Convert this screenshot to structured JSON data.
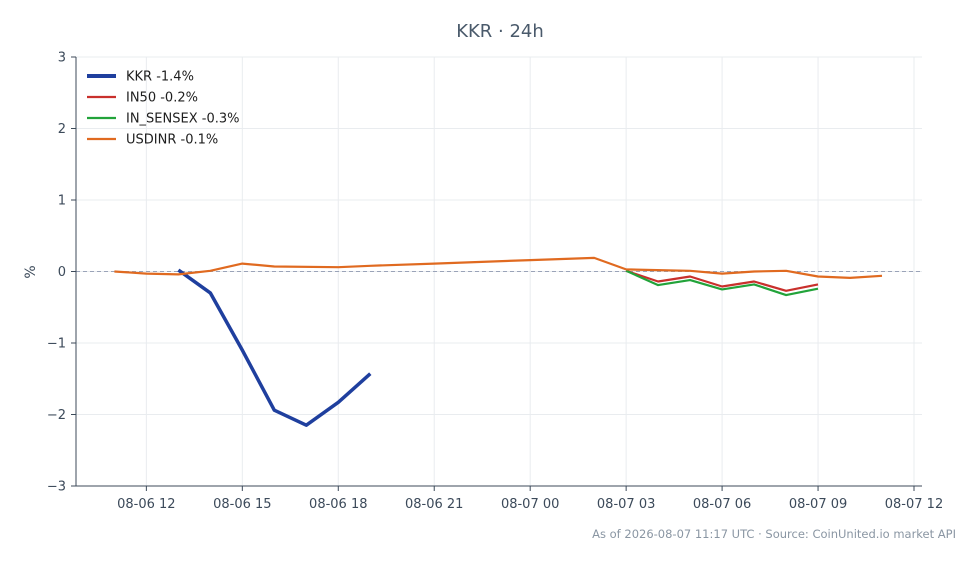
{
  "chart_data": {
    "type": "line",
    "title": "KKR · 24h",
    "xlabel": "",
    "ylabel": "%",
    "xlim": [
      "2026-08-06 09:48",
      "2026-08-07 12:15"
    ],
    "ylim": [
      -3,
      3
    ],
    "x_tick_labels": [
      "08-06 12",
      "08-06 15",
      "08-06 18",
      "08-06 21",
      "08-07 00",
      "08-07 03",
      "08-07 06",
      "08-07 09",
      "08-07 12"
    ],
    "x_ticks": [
      "2026-08-06 12:00",
      "2026-08-06 15:00",
      "2026-08-06 18:00",
      "2026-08-06 21:00",
      "2026-08-07 00:00",
      "2026-08-07 03:00",
      "2026-08-07 06:00",
      "2026-08-07 09:00",
      "2026-08-07 12:00"
    ],
    "y_ticks": [
      -3,
      -2,
      -1,
      0,
      1,
      2,
      3
    ],
    "y_tick_labels": [
      "−3",
      "−2",
      "−1",
      "0",
      "1",
      "2",
      "3"
    ],
    "grid": true,
    "zero_line": true,
    "legend_position": "top-left",
    "series": [
      {
        "name": "KKR -1.4%",
        "color": "#1f3f9e",
        "points": [
          [
            "2026-08-06 13:00",
            0.02
          ],
          [
            "2026-08-06 14:00",
            -0.3
          ],
          [
            "2026-08-06 15:00",
            -1.1
          ],
          [
            "2026-08-06 16:00",
            -1.94
          ],
          [
            "2026-08-06 17:00",
            -2.15
          ],
          [
            "2026-08-06 18:00",
            -1.83
          ],
          [
            "2026-08-06 19:00",
            -1.43
          ]
        ]
      },
      {
        "name": "IN50 -0.2%",
        "color": "#c9302c",
        "points": [
          [
            "2026-08-07 03:00",
            0.01
          ],
          [
            "2026-08-07 04:00",
            -0.14
          ],
          [
            "2026-08-07 05:00",
            -0.07
          ],
          [
            "2026-08-07 06:00",
            -0.21
          ],
          [
            "2026-08-07 07:00",
            -0.14
          ],
          [
            "2026-08-07 08:00",
            -0.27
          ],
          [
            "2026-08-07 09:00",
            -0.18
          ]
        ]
      },
      {
        "name": "IN_SENSEX -0.3%",
        "color": "#22a33a",
        "points": [
          [
            "2026-08-07 03:00",
            0.01
          ],
          [
            "2026-08-07 04:00",
            -0.19
          ],
          [
            "2026-08-07 05:00",
            -0.12
          ],
          [
            "2026-08-07 06:00",
            -0.25
          ],
          [
            "2026-08-07 07:00",
            -0.18
          ],
          [
            "2026-08-07 08:00",
            -0.33
          ],
          [
            "2026-08-07 09:00",
            -0.24
          ]
        ]
      },
      {
        "name": "USDINR -0.1%",
        "color": "#e06a20",
        "points": [
          [
            "2026-08-06 11:00",
            0.0
          ],
          [
            "2026-08-06 12:00",
            -0.03
          ],
          [
            "2026-08-06 13:00",
            -0.04
          ],
          [
            "2026-08-06 14:00",
            0.01
          ],
          [
            "2026-08-06 15:00",
            0.11
          ],
          [
            "2026-08-06 16:00",
            0.07
          ],
          [
            "2026-08-06 18:00",
            0.06
          ],
          [
            "2026-08-06 19:00",
            0.08
          ],
          [
            "2026-08-06 21:00",
            0.11
          ],
          [
            "2026-08-07 00:00",
            0.16
          ],
          [
            "2026-08-07 02:00",
            0.19
          ],
          [
            "2026-08-07 03:00",
            0.03
          ],
          [
            "2026-08-07 05:00",
            0.01
          ],
          [
            "2026-08-07 06:00",
            -0.03
          ],
          [
            "2026-08-07 07:00",
            0.0
          ],
          [
            "2026-08-07 08:00",
            0.01
          ],
          [
            "2026-08-07 09:00",
            -0.07
          ],
          [
            "2026-08-07 10:00",
            -0.09
          ],
          [
            "2026-08-07 11:00",
            -0.06
          ]
        ]
      }
    ]
  },
  "footer": {
    "text": "As of 2026-08-07 11:17 UTC · Source: CoinUnited.io market API"
  }
}
